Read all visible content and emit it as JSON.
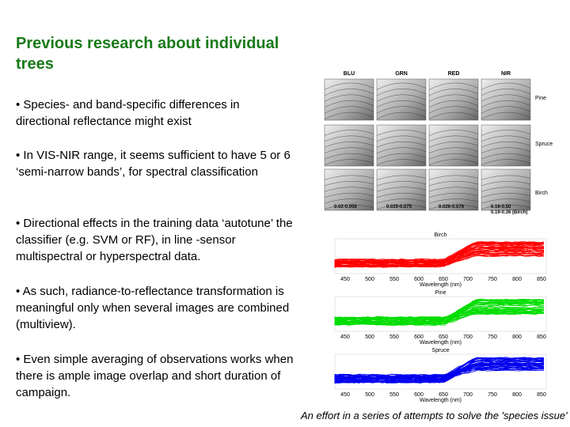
{
  "header": {
    "title": "Previous research about individual trees"
  },
  "bullets": [
    "• Species- and band-specific differences in directional reflectance might exist",
    "• In VIS-NIR range, it seems sufficient to have 5 or 6 ‘semi-narrow bands’, for spectral classification",
    "• Directional effects in the training data ‘autotune’ the classifier (e.g. SVM or RF), in line -sensor multispectral or hyperspectral data.",
    "• As such, radiance-to-reflectance transformation is meaningful only when several images are combined (multiview).",
    "• Even simple averaging of observations works when there is ample image overlap and short duration of campaign."
  ],
  "figure1": {
    "bands": [
      "BLU",
      "GRN",
      "RED",
      "NIR"
    ],
    "species": [
      "Pine",
      "Spruce",
      "Birch"
    ],
    "ranges": [
      "0.02-0.056",
      "0.029-0.075",
      "0.026-0.076",
      "0.16-0.50",
      "0.19-0.36 (Birch)"
    ]
  },
  "figure2": {
    "panels": [
      {
        "title": "Birch",
        "color": "#ff0000"
      },
      {
        "title": "Pine",
        "color": "#00dd00"
      },
      {
        "title": "Spruce",
        "color": "#0000ee"
      }
    ],
    "xticks": [
      "450",
      "500",
      "550",
      "600",
      "650",
      "700",
      "750",
      "800",
      "850"
    ],
    "xlabel": "Wavelength (nm)"
  },
  "caption": "An effort in a series of attempts to solve the 'species issue'"
}
